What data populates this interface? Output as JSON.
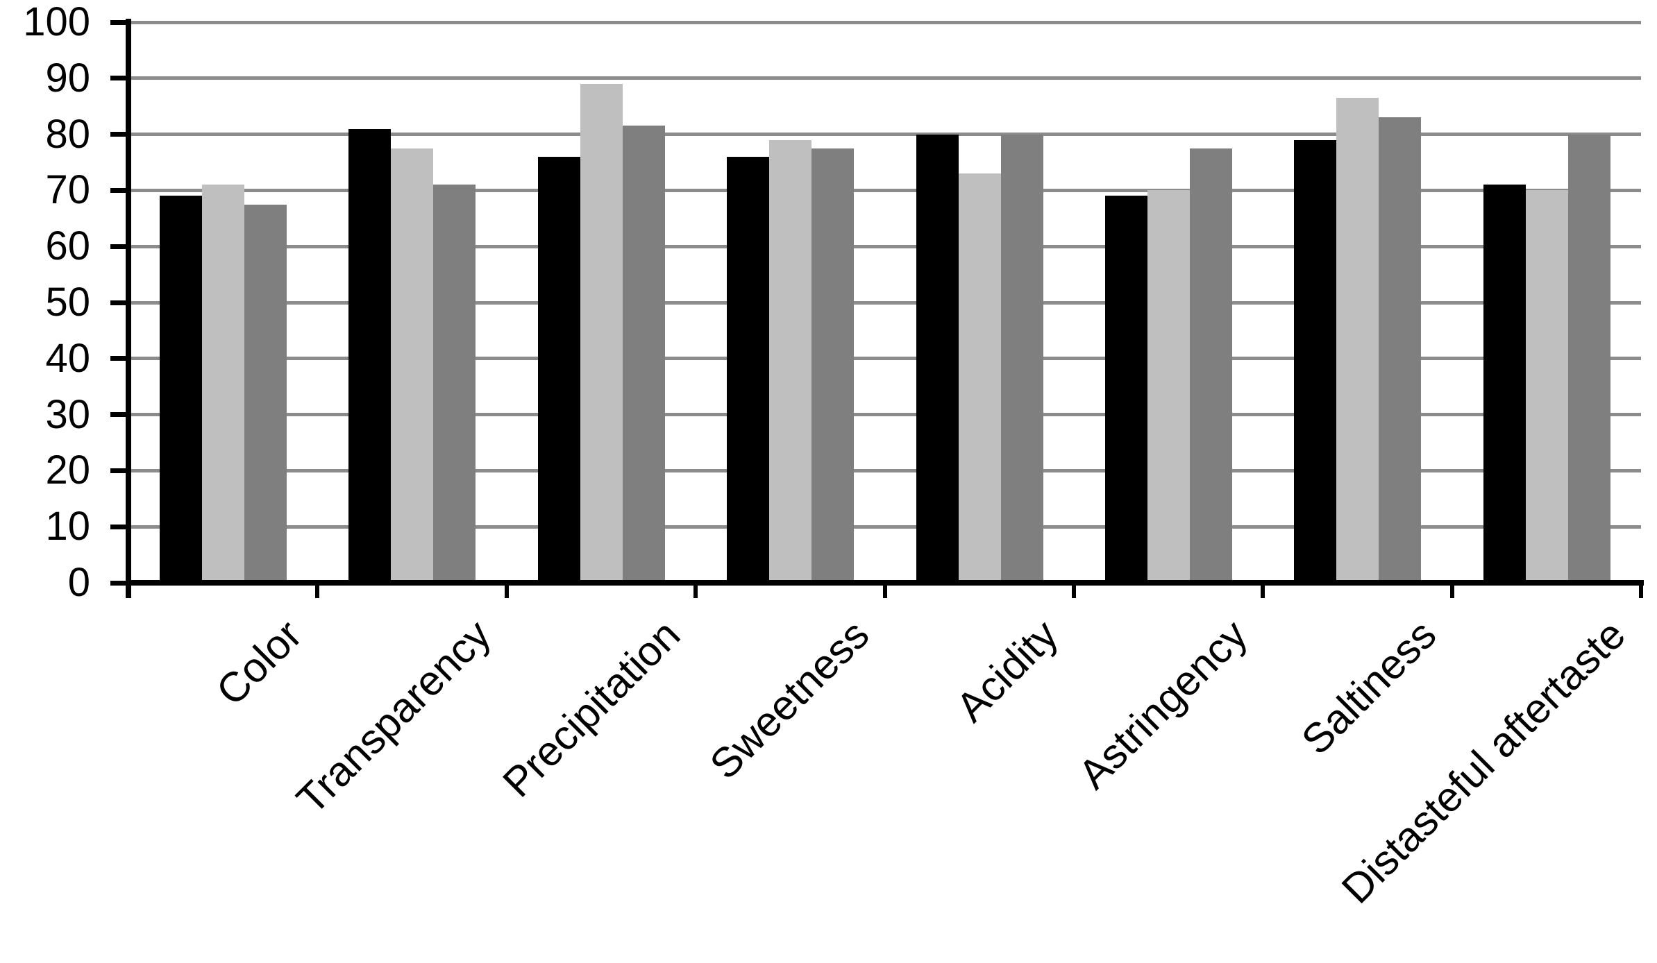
{
  "chart_data": {
    "type": "bar",
    "title": "",
    "xlabel": "",
    "ylabel": "",
    "categories": [
      "Color",
      "Transparency",
      "Precipitation",
      "Sweetness",
      "Acidity",
      "Astringency",
      "Saltiness",
      "Distasteful aftertaste"
    ],
    "series": [
      {
        "name": "series-1-black",
        "color": "#000000",
        "values": [
          69,
          81,
          76,
          76,
          80,
          69,
          79,
          71
        ]
      },
      {
        "name": "series-2-light-gray",
        "color": "#bfbfbf",
        "values": [
          71,
          77.5,
          89,
          79,
          73,
          70,
          86.5,
          70
        ]
      },
      {
        "name": "series-3-dark-gray",
        "color": "#7f7f7f",
        "values": [
          67.5,
          71,
          81.5,
          77.5,
          80,
          77.5,
          83,
          80
        ]
      }
    ],
    "ylim": [
      0,
      100
    ],
    "ytick_step": 10,
    "ytick_labels": [
      "0",
      "10",
      "20",
      "30",
      "40",
      "50",
      "60",
      "70",
      "80",
      "90",
      "100"
    ],
    "grid": true,
    "legend": "none",
    "gridline_color": "#8c8c8c",
    "axis_color": "#000000",
    "background_color": "#ffffff"
  }
}
